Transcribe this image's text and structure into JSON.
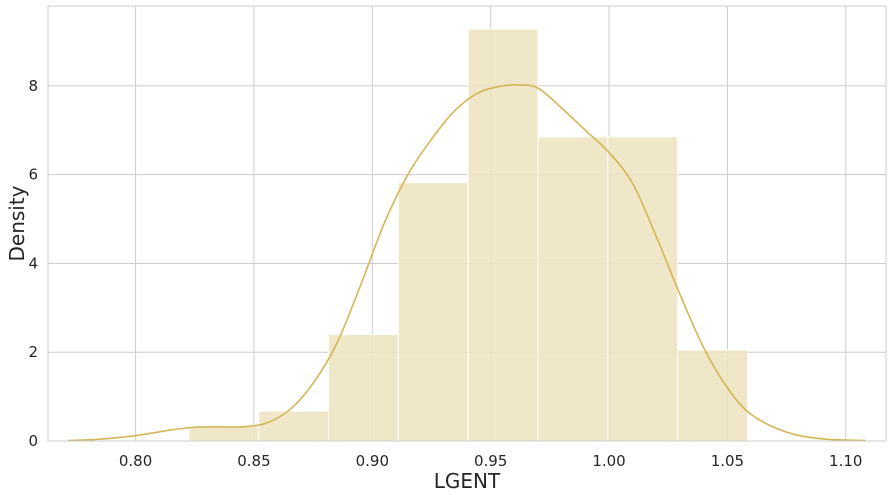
{
  "chart_data": {
    "type": "histogram",
    "title": "",
    "xlabel": "LGENT",
    "ylabel": "Density",
    "xlim": [
      0.763,
      1.117
    ],
    "ylim": [
      0,
      9.8
    ],
    "xticks": [
      0.8,
      0.85,
      0.9,
      0.95,
      1.0,
      1.05,
      1.1
    ],
    "xtick_labels": [
      "0.80",
      "0.85",
      "0.90",
      "0.95",
      "1.00",
      "1.05",
      "1.10"
    ],
    "yticks": [
      0,
      2,
      4,
      6,
      8
    ],
    "ytick_labels": [
      "0",
      "2",
      "4",
      "6",
      "8"
    ],
    "grid": true,
    "colors": {
      "bar_fill": "#ede4bf",
      "bar_edge": "#ffffff",
      "kde_line": "#d3b655",
      "grid": "#cccccc",
      "frame": "#cccccc"
    },
    "bins": [
      {
        "x0": 0.8225,
        "x1": 0.852,
        "density": 0.33
      },
      {
        "x0": 0.852,
        "x1": 0.8815,
        "density": 0.67
      },
      {
        "x0": 0.8815,
        "x1": 0.911,
        "density": 2.4
      },
      {
        "x0": 0.911,
        "x1": 0.9405,
        "density": 5.82
      },
      {
        "x0": 0.9405,
        "x1": 0.97,
        "density": 9.28
      },
      {
        "x0": 0.97,
        "x1": 0.9995,
        "density": 6.85
      },
      {
        "x0": 0.9995,
        "x1": 1.029,
        "density": 6.85
      },
      {
        "x0": 1.029,
        "x1": 1.0585,
        "density": 2.05
      }
    ],
    "kde": {
      "x": [
        0.7715,
        0.785,
        0.8,
        0.815,
        0.825,
        0.835,
        0.845,
        0.855,
        0.865,
        0.875,
        0.885,
        0.895,
        0.905,
        0.915,
        0.925,
        0.935,
        0.945,
        0.955,
        0.962,
        0.97,
        0.98,
        0.99,
        1.0,
        1.01,
        1.02,
        1.03,
        1.04,
        1.05,
        1.06,
        1.075,
        1.09,
        1.1085
      ],
      "y": [
        0.01,
        0.04,
        0.12,
        0.25,
        0.31,
        0.32,
        0.32,
        0.4,
        0.7,
        1.3,
        2.2,
        3.5,
        4.9,
        6.0,
        6.8,
        7.45,
        7.85,
        8.0,
        8.02,
        7.95,
        7.5,
        7.0,
        6.5,
        5.8,
        4.6,
        3.3,
        2.1,
        1.2,
        0.6,
        0.2,
        0.05,
        0.01
      ]
    }
  }
}
